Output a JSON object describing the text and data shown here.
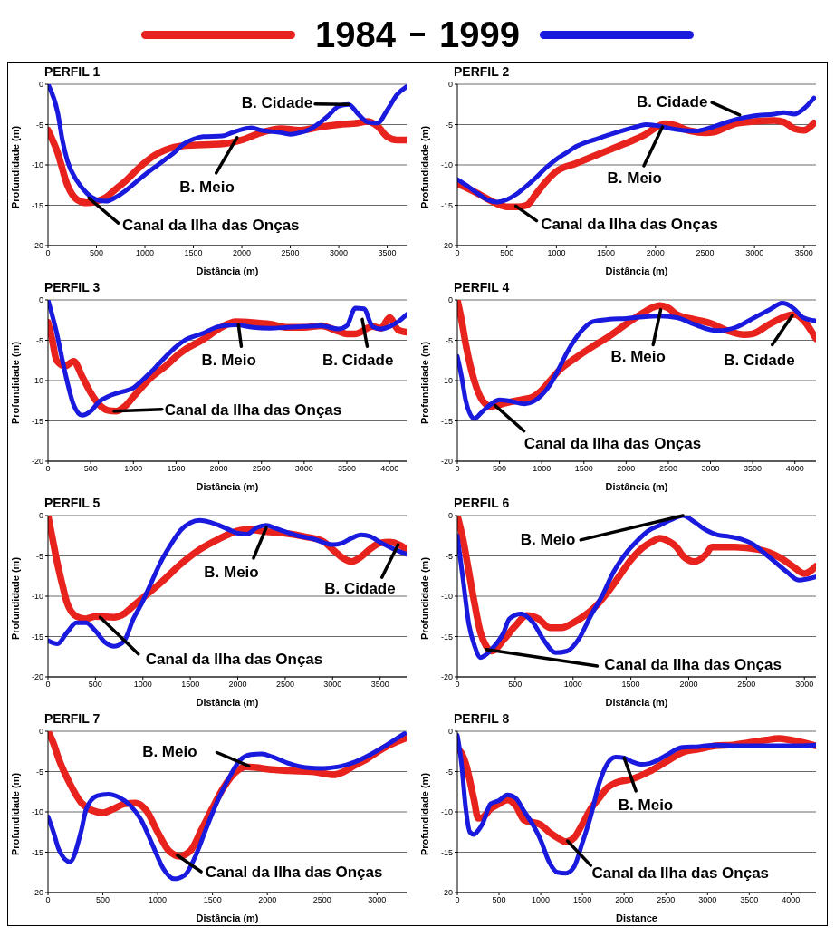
{
  "chart_data": [
    {
      "type": "line",
      "title": "PERFIL 1",
      "xlabel": "Distância (m)",
      "ylabel": "Profundidade (m)",
      "xlim": [
        0,
        3700
      ],
      "xticks": [
        0,
        500,
        1000,
        1500,
        2000,
        2500,
        3000,
        3500
      ],
      "ylim": [
        -20,
        0
      ],
      "yticks": [
        -20,
        -15,
        -10,
        -5,
        0
      ],
      "grid": "y",
      "legend": "top",
      "series": [
        {
          "name": "1984",
          "color": "#e8231e",
          "x": [
            0,
            100,
            200,
            300,
            400,
            500,
            600,
            700,
            800,
            900,
            1000,
            1100,
            1200,
            1300,
            1400,
            1600,
            1800,
            1900,
            2000,
            2200,
            2400,
            2600,
            2800,
            3000,
            3200,
            3300,
            3400,
            3500,
            3600,
            3700
          ],
          "values": [
            -5.7,
            -8.5,
            -12.5,
            -14.3,
            -14.7,
            -14.5,
            -14,
            -13,
            -12,
            -10.8,
            -9.7,
            -8.8,
            -8.2,
            -7.8,
            -7.6,
            -7.5,
            -7.4,
            -7.2,
            -6.9,
            -6.0,
            -5.5,
            -5.7,
            -5.3,
            -5.0,
            -4.8,
            -4.6,
            -5.2,
            -6.5,
            -6.9,
            -6.9
          ]
        },
        {
          "name": "1999",
          "color": "#1a1ade",
          "x": [
            0,
            100,
            150,
            200,
            300,
            400,
            500,
            600,
            700,
            800,
            900,
            1000,
            1100,
            1200,
            1300,
            1400,
            1500,
            1600,
            1800,
            1900,
            2000,
            2100,
            2200,
            2400,
            2500,
            2600,
            2700,
            2800,
            2900,
            3000,
            3100,
            3200,
            3300,
            3400,
            3500,
            3600,
            3700
          ],
          "values": [
            0,
            -3.5,
            -7,
            -9.5,
            -12,
            -13.5,
            -14.3,
            -14.5,
            -14,
            -13.2,
            -12.2,
            -11.2,
            -10.3,
            -9.4,
            -8.5,
            -7.4,
            -6.8,
            -6.5,
            -6.4,
            -6,
            -5.6,
            -5.4,
            -5.7,
            -6,
            -6.2,
            -6,
            -5.6,
            -4.8,
            -3.8,
            -2.7,
            -2.5,
            -3.7,
            -4.7,
            -4.8,
            -3.2,
            -1.3,
            -0.3
          ]
        }
      ],
      "annotations": [
        {
          "text": "B. Cidade",
          "x": 3100,
          "y": -2.5
        },
        {
          "text": "B. Meio",
          "x": 1950,
          "y": -6.6
        },
        {
          "text": "Canal da Ilha das Onças",
          "x": 420,
          "y": -14.1
        }
      ]
    },
    {
      "type": "line",
      "title": "PERFIL 2",
      "xlabel": "Distância (m)",
      "ylabel": "Profundidade (m)",
      "xlim": [
        0,
        3620
      ],
      "xticks": [
        0,
        500,
        1000,
        1500,
        2000,
        2500,
        3000,
        3500
      ],
      "ylim": [
        -20,
        0
      ],
      "yticks": [
        -20,
        -15,
        -10,
        -5,
        0
      ],
      "grid": "y",
      "series": [
        {
          "color": "#e8231e",
          "x": [
            0,
            200,
            400,
            500,
            600,
            700,
            800,
            900,
            1000,
            1200,
            1400,
            1600,
            1800,
            1900,
            2000,
            2100,
            2200,
            2300,
            2500,
            2600,
            2700,
            2800,
            3000,
            3200,
            3300,
            3400,
            3500,
            3600
          ],
          "values": [
            -12.3,
            -13.5,
            -14.8,
            -15.2,
            -15.2,
            -15,
            -13.5,
            -12,
            -10.8,
            -9.8,
            -8.8,
            -7.8,
            -6.8,
            -6.2,
            -5.4,
            -4.9,
            -5.1,
            -5.6,
            -6,
            -5.9,
            -5.4,
            -4.9,
            -4.6,
            -4.5,
            -4.7,
            -5.5,
            -5.7,
            -4.8
          ]
        },
        {
          "color": "#1a1ade",
          "x": [
            0,
            100,
            200,
            300,
            400,
            500,
            600,
            700,
            800,
            900,
            1000,
            1100,
            1200,
            1400,
            1600,
            1800,
            1900,
            2000,
            2200,
            2400,
            2600,
            2800,
            3000,
            3200,
            3300,
            3400,
            3500,
            3600
          ],
          "values": [
            -11.8,
            -12.6,
            -13.5,
            -14.3,
            -14.6,
            -14.3,
            -13.6,
            -12.6,
            -11.5,
            -10.3,
            -9.3,
            -8.5,
            -7.7,
            -6.8,
            -6,
            -5.3,
            -5,
            -5.1,
            -5.6,
            -5.8,
            -5.2,
            -4.4,
            -3.9,
            -3.7,
            -3.5,
            -3.7,
            -3,
            -1.7
          ]
        }
      ],
      "annotations": [
        {
          "text": "B. Cidade",
          "x": 2850,
          "y": -3.8
        },
        {
          "text": "B. Meio",
          "x": 2070,
          "y": -5.3
        },
        {
          "text": "Canal da Ilha das Onças",
          "x": 590,
          "y": -15.1
        }
      ]
    },
    {
      "type": "line",
      "title": "PERFIL 3",
      "xlabel": "Distância (m)",
      "ylabel": "Profundidade (m)",
      "xlim": [
        0,
        4200
      ],
      "xticks": [
        0,
        500,
        1000,
        1500,
        2000,
        2500,
        3000,
        3500,
        4000
      ],
      "ylim": [
        -20,
        0
      ],
      "yticks": [
        -20,
        -15,
        -10,
        -5,
        0
      ],
      "grid": "y",
      "series": [
        {
          "color": "#e8231e",
          "x": [
            0,
            50,
            100,
            200,
            300,
            400,
            500,
            600,
            700,
            800,
            900,
            1000,
            1100,
            1200,
            1400,
            1500,
            1600,
            1800,
            2000,
            2100,
            2200,
            2400,
            2600,
            2800,
            3000,
            3200,
            3400,
            3500,
            3600,
            3800,
            3900,
            4000,
            4100,
            4200
          ],
          "values": [
            -2.8,
            -5,
            -7.5,
            -8.2,
            -7.6,
            -9.5,
            -11.5,
            -13,
            -13.7,
            -13.8,
            -13.2,
            -12,
            -10.8,
            -9.7,
            -8,
            -7,
            -6.2,
            -5,
            -3.6,
            -3,
            -2.7,
            -2.8,
            -3,
            -3.4,
            -3.4,
            -3.2,
            -3.9,
            -4.2,
            -4.2,
            -3.3,
            -3.5,
            -2.2,
            -3.7,
            -4
          ]
        },
        {
          "color": "#1a1ade",
          "x": [
            0,
            100,
            200,
            300,
            400,
            500,
            600,
            700,
            800,
            900,
            1000,
            1100,
            1200,
            1300,
            1400,
            1500,
            1600,
            1800,
            2000,
            2200,
            2400,
            2600,
            2800,
            3000,
            3200,
            3400,
            3500,
            3600,
            3700,
            3800,
            3900,
            4000,
            4100,
            4200
          ],
          "values": [
            0,
            -4,
            -9,
            -13,
            -14.3,
            -13.8,
            -12.6,
            -12,
            -11.6,
            -11.3,
            -10.9,
            -10,
            -9,
            -7.9,
            -6.8,
            -5.8,
            -5,
            -4.2,
            -3.3,
            -3.1,
            -3.4,
            -3.5,
            -3.4,
            -3.3,
            -3.2,
            -3.6,
            -3.2,
            -1,
            -1.1,
            -3.3,
            -3.6,
            -3.3,
            -2.7,
            -1.8
          ]
        }
      ],
      "annotations": [
        {
          "text": "B. Meio",
          "x": 2230,
          "y": -3.1
        },
        {
          "text": "B. Cidade",
          "x": 3680,
          "y": -2.4
        },
        {
          "text": "Canal da Ilha das Onças",
          "x": 775,
          "y": -13.8
        }
      ]
    },
    {
      "type": "line",
      "title": "PERFIL 4",
      "xlabel": "Distância (m)",
      "ylabel": "Profundidade (m)",
      "xlim": [
        0,
        4250
      ],
      "xticks": [
        0,
        500,
        1000,
        1500,
        2000,
        2500,
        3000,
        3500,
        4000
      ],
      "ylim": [
        -20,
        0
      ],
      "yticks": [
        -20,
        -15,
        -10,
        -5,
        0
      ],
      "grid": "y",
      "series": [
        {
          "color": "#e8231e",
          "x": [
            0,
            50,
            100,
            200,
            300,
            400,
            500,
            600,
            800,
            900,
            1000,
            1100,
            1200,
            1400,
            1600,
            1800,
            2000,
            2200,
            2300,
            2400,
            2500,
            2600,
            2800,
            3000,
            3200,
            3400,
            3500,
            3700,
            3900,
            4000,
            4100,
            4250
          ],
          "values": [
            0,
            -2.5,
            -5.5,
            -10,
            -12.5,
            -13.2,
            -13,
            -12.7,
            -12.3,
            -12,
            -11.2,
            -10,
            -8.8,
            -7.2,
            -5.8,
            -4.5,
            -3,
            -1.6,
            -1,
            -0.7,
            -1,
            -1.8,
            -2.4,
            -2.9,
            -3.8,
            -4.3,
            -4.2,
            -3,
            -2,
            -1.8,
            -2.5,
            -4.8
          ]
        },
        {
          "color": "#1a1ade",
          "x": [
            0,
            50,
            100,
            200,
            300,
            400,
            500,
            600,
            800,
            900,
            1000,
            1100,
            1200,
            1300,
            1400,
            1500,
            1600,
            1800,
            2000,
            2200,
            2400,
            2600,
            2800,
            3000,
            3100,
            3300,
            3500,
            3700,
            3850,
            3900,
            4000,
            4100,
            4250
          ],
          "values": [
            -7,
            -9.5,
            -12.5,
            -14.7,
            -13.8,
            -12.9,
            -12.4,
            -12.5,
            -12.9,
            -12.6,
            -11.8,
            -10.5,
            -8.6,
            -6.5,
            -4.8,
            -3.5,
            -2.7,
            -2.4,
            -2.3,
            -2.1,
            -2,
            -2.2,
            -3,
            -3.7,
            -3.8,
            -3.4,
            -2.3,
            -1.2,
            -0.4,
            -0.5,
            -1.2,
            -2.2,
            -2.6
          ]
        }
      ],
      "annotations": [
        {
          "text": "B. Meio",
          "x": 2410,
          "y": -1.2
        },
        {
          "text": "B. Cidade",
          "x": 3970,
          "y": -1.9
        },
        {
          "text": "Canal da Ilha das Onças",
          "x": 450,
          "y": -13.1
        }
      ]
    },
    {
      "type": "line",
      "title": "PERFIL 5",
      "xlabel": "Distância (m)",
      "ylabel": "Profundidade (m)",
      "xlim": [
        0,
        3780
      ],
      "xticks": [
        0,
        500,
        1000,
        1500,
        2000,
        2500,
        3000,
        3500
      ],
      "ylim": [
        -20,
        0
      ],
      "yticks": [
        -20,
        -15,
        -10,
        -5,
        0
      ],
      "grid": "y",
      "series": [
        {
          "color": "#e8231e",
          "x": [
            0,
            50,
            100,
            150,
            200,
            300,
            400,
            500,
            700,
            800,
            900,
            1000,
            1200,
            1400,
            1600,
            1800,
            2000,
            2100,
            2300,
            2500,
            2700,
            2900,
            3000,
            3100,
            3200,
            3300,
            3400,
            3500,
            3600,
            3700,
            3780
          ],
          "values": [
            0,
            -3,
            -6,
            -8.5,
            -10.8,
            -12.5,
            -12.8,
            -12.5,
            -12.6,
            -12.2,
            -11.2,
            -10.2,
            -8.2,
            -6,
            -4.2,
            -2.9,
            -1.9,
            -1.7,
            -2,
            -2.2,
            -2.6,
            -3.2,
            -4.2,
            -5.2,
            -5.7,
            -5.1,
            -4.1,
            -3.4,
            -3.3,
            -3.6,
            -4.2
          ]
        },
        {
          "color": "#1a1ade",
          "x": [
            0,
            100,
            200,
            300,
            400,
            500,
            600,
            700,
            800,
            900,
            1000,
            1100,
            1200,
            1300,
            1400,
            1500,
            1600,
            1700,
            1800,
            1900,
            2000,
            2100,
            2200,
            2300,
            2400,
            2600,
            2800,
            3000,
            3100,
            3200,
            3300,
            3400,
            3500,
            3600,
            3780
          ],
          "values": [
            -15.5,
            -15.9,
            -14.5,
            -13.3,
            -13.3,
            -14.3,
            -15.7,
            -16.2,
            -15.6,
            -12.8,
            -10.6,
            -8,
            -5.5,
            -3.5,
            -1.8,
            -0.9,
            -0.6,
            -0.8,
            -1.2,
            -1.7,
            -2.2,
            -2.3,
            -1.5,
            -1.2,
            -1.6,
            -2.4,
            -2.9,
            -3.6,
            -3.4,
            -2.8,
            -2.4,
            -2.6,
            -3.3,
            -3.9,
            -4.8
          ]
        }
      ],
      "annotations": [
        {
          "text": "B. Meio",
          "x": 2300,
          "y": -1.5
        },
        {
          "text": "B. Cidade",
          "x": 3690,
          "y": -3.6
        },
        {
          "text": "Canal da Ilha das Onças",
          "x": 550,
          "y": -12.6
        }
      ]
    },
    {
      "type": "line",
      "title": "PERFIL 6",
      "xlabel": "Distância (m)",
      "ylabel": "Profundidade (m)",
      "xlim": [
        0,
        3100
      ],
      "xticks": [
        0,
        500,
        1000,
        1500,
        2000,
        2500,
        3000
      ],
      "ylim": [
        -20,
        0
      ],
      "yticks": [
        -20,
        -15,
        -10,
        -5,
        0
      ],
      "grid": "y",
      "series": [
        {
          "color": "#e8231e",
          "x": [
            0,
            50,
            100,
            150,
            200,
            250,
            300,
            400,
            500,
            600,
            700,
            800,
            900,
            1000,
            1100,
            1200,
            1300,
            1400,
            1500,
            1600,
            1700,
            1750,
            1800,
            1900,
            1950,
            2050,
            2150,
            2200,
            2400,
            2600,
            2700,
            2800,
            2900,
            3000,
            3100
          ],
          "values": [
            0,
            -3,
            -7,
            -11,
            -14.5,
            -16.2,
            -16.8,
            -15.4,
            -13.7,
            -12.4,
            -12.8,
            -13.9,
            -13.9,
            -13.3,
            -12.4,
            -11.2,
            -9.5,
            -7.5,
            -5.5,
            -4,
            -3.1,
            -2.8,
            -3,
            -4,
            -5,
            -5.7,
            -4.8,
            -3.9,
            -3.9,
            -4.2,
            -4.6,
            -5.3,
            -6.3,
            -7.2,
            -6.3
          ]
        },
        {
          "color": "#1a1ade",
          "x": [
            0,
            50,
            100,
            150,
            200,
            300,
            400,
            450,
            550,
            650,
            750,
            850,
            950,
            1050,
            1150,
            1250,
            1350,
            1450,
            1550,
            1650,
            1750,
            1850,
            1950,
            2050,
            2150,
            2250,
            2350,
            2450,
            2550,
            2650,
            2750,
            2850,
            2950,
            3100
          ],
          "values": [
            -2.5,
            -8,
            -13.5,
            -16.2,
            -17.6,
            -16.5,
            -14.5,
            -12.8,
            -12.2,
            -13.2,
            -15.5,
            -17,
            -16.8,
            -15.3,
            -12.5,
            -10,
            -7,
            -4.8,
            -3.2,
            -1.9,
            -1.2,
            -0.5,
            0,
            -0.8,
            -1.8,
            -2.4,
            -2.6,
            -2.9,
            -3.5,
            -4.6,
            -5.8,
            -7,
            -8,
            -7.6
          ]
        }
      ],
      "annotations": [
        {
          "text": "B. Meio",
          "x": 1950,
          "y": 0
        },
        {
          "text": "Canal da Ilha das Onças",
          "x": 250,
          "y": -16.6
        }
      ]
    },
    {
      "type": "line",
      "title": "PERFIL 7",
      "xlabel": "Distância (m)",
      "ylabel": "Profundidade (m)",
      "xlim": [
        0,
        3270
      ],
      "xticks": [
        0,
        500,
        1000,
        1500,
        2000,
        2500,
        3000
      ],
      "ylim": [
        -20,
        0
      ],
      "yticks": [
        -20,
        -15,
        -10,
        -5,
        0
      ],
      "grid": "y",
      "series": [
        {
          "color": "#e8231e",
          "x": [
            0,
            50,
            100,
            200,
            300,
            400,
            500,
            600,
            700,
            800,
            900,
            1000,
            1100,
            1200,
            1300,
            1400,
            1500,
            1600,
            1700,
            1800,
            1900,
            2000,
            2200,
            2400,
            2500,
            2600,
            2700,
            2800,
            2900,
            3000,
            3100,
            3270
          ],
          "values": [
            0,
            -1.5,
            -3.5,
            -6.5,
            -8.8,
            -9.8,
            -10.1,
            -9.6,
            -9,
            -8.9,
            -9.9,
            -12.5,
            -14.8,
            -15.5,
            -14.8,
            -12.2,
            -9.5,
            -7,
            -5.2,
            -4.4,
            -4.5,
            -4.7,
            -4.9,
            -5,
            -5.2,
            -5.4,
            -5,
            -4.2,
            -3.5,
            -2.6,
            -1.8,
            -0.8
          ]
        },
        {
          "color": "#1a1ade",
          "x": [
            0,
            50,
            100,
            200,
            300,
            350,
            450,
            550,
            650,
            750,
            850,
            950,
            1050,
            1150,
            1250,
            1350,
            1450,
            1550,
            1650,
            1750,
            1850,
            1950,
            2050,
            2200,
            2350,
            2500,
            2650,
            2800,
            2950,
            3100,
            3250
          ],
          "values": [
            -10.6,
            -12.5,
            -14.7,
            -16.2,
            -12.5,
            -9.6,
            -8,
            -7.8,
            -8.2,
            -9.2,
            -11,
            -14,
            -17,
            -18.3,
            -17.8,
            -15.3,
            -11.8,
            -8.5,
            -5.8,
            -3.6,
            -2.9,
            -2.8,
            -3.2,
            -4,
            -4.5,
            -4.6,
            -4.4,
            -3.8,
            -2.8,
            -1.6,
            -0.3
          ]
        }
      ],
      "annotations": [
        {
          "text": "B. Meio",
          "x": 1830,
          "y": -4.3
        },
        {
          "text": "Canal da Ilha das Onças",
          "x": 1180,
          "y": -15.4
        }
      ]
    },
    {
      "type": "line",
      "title": "PERFIL 8",
      "xlabel": "Distance",
      "ylabel": "Profundidade (m)",
      "xlim": [
        0,
        4300
      ],
      "xticks": [
        0,
        500,
        1000,
        1500,
        2000,
        2500,
        3000,
        3500,
        4000
      ],
      "ylim": [
        -20,
        0
      ],
      "yticks": [
        -20,
        -15,
        -10,
        -5,
        0
      ],
      "grid": "y",
      "series": [
        {
          "color": "#e8231e",
          "x": [
            0,
            50,
            100,
            200,
            250,
            300,
            400,
            500,
            600,
            700,
            800,
            1000,
            1100,
            1200,
            1300,
            1400,
            1500,
            1600,
            1700,
            1800,
            1900,
            2100,
            2300,
            2500,
            2700,
            2900,
            3100,
            3300,
            3500,
            3700,
            3850,
            4000,
            4300
          ],
          "values": [
            -2.2,
            -2.7,
            -4,
            -8.5,
            -10.8,
            -10.7,
            -9.6,
            -9,
            -8.5,
            -9.2,
            -11,
            -11.6,
            -12.5,
            -13.2,
            -13.7,
            -13.2,
            -11.5,
            -9.6,
            -8.3,
            -7,
            -6.4,
            -5.9,
            -5,
            -3.8,
            -2.6,
            -2.2,
            -1.8,
            -1.7,
            -1.4,
            -1.1,
            -0.9,
            -1.1,
            -1.8
          ]
        },
        {
          "color": "#1a1ade",
          "x": [
            0,
            50,
            100,
            150,
            200,
            250,
            300,
            400,
            500,
            600,
            700,
            800,
            900,
            1000,
            1100,
            1200,
            1300,
            1400,
            1500,
            1600,
            1700,
            1800,
            1900,
            2000,
            2100,
            2200,
            2300,
            2400,
            2500,
            2700,
            2900,
            3100,
            3300,
            3500,
            4000,
            4300
          ],
          "values": [
            -0.5,
            -4,
            -9.5,
            -12.5,
            -12.8,
            -12.3,
            -11.5,
            -9,
            -8.6,
            -7.9,
            -8.3,
            -9.9,
            -11.5,
            -13.5,
            -16.2,
            -17.5,
            -17.6,
            -16.8,
            -13.8,
            -10.5,
            -6.5,
            -4,
            -3.2,
            -3.3,
            -3.8,
            -4.1,
            -4,
            -3.6,
            -3,
            -2,
            -1.9,
            -1.7,
            -1.8,
            -1.8,
            -1.8,
            -1.7
          ]
        }
      ],
      "annotations": [
        {
          "text": "B. Meio",
          "x": 2000,
          "y": -3.3
        },
        {
          "text": "Canal da Ilha das Onças",
          "x": 1320,
          "y": -13.6
        }
      ]
    }
  ]
}
